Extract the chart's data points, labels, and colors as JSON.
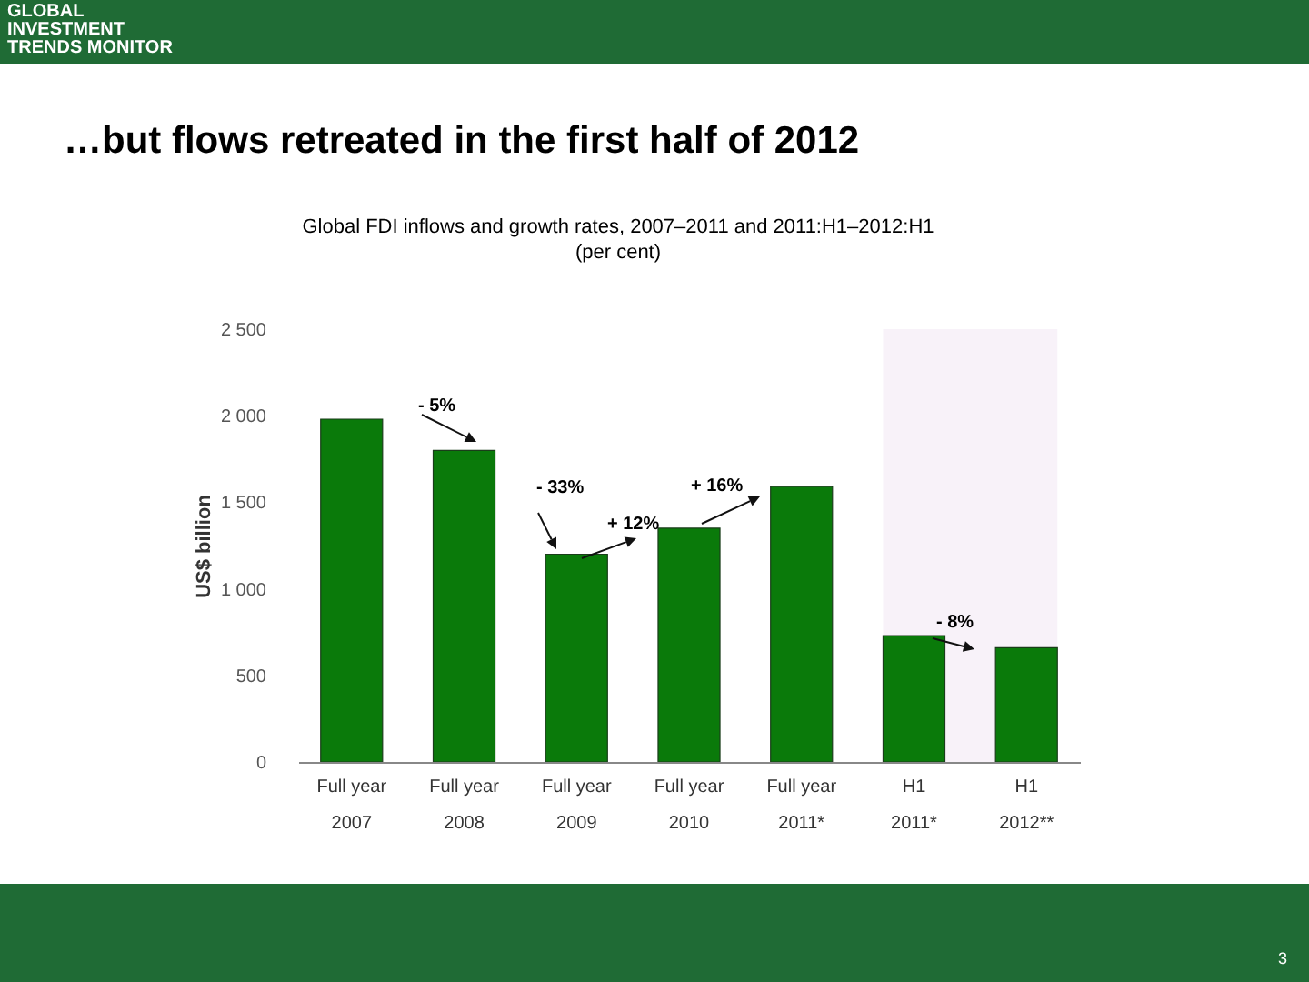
{
  "chart_data": {
    "type": "bar",
    "title": "…but flows retreated in the first half of 2012",
    "subtitle": "Global FDI inflows and growth rates, 2007–2011 and 2011:H1–2012:H1\n(per cent)",
    "ylabel": "US$ billion",
    "categories": [
      "Full year\n2007",
      "Full year\n2008",
      "Full year\n2009",
      "Full year\n2010",
      "Full year\n2011*",
      "H1\n2011*",
      "H1\n2012**"
    ],
    "values": [
      1980,
      1800,
      1200,
      1350,
      1590,
      730,
      660
    ],
    "color": "#0a7a0a",
    "ylim": [
      0,
      2500
    ],
    "yticks": [
      {
        "value": 0,
        "label": "0"
      },
      {
        "value": 500,
        "label": "500"
      },
      {
        "value": 1000,
        "label": "1 000"
      },
      {
        "value": 1500,
        "label": "1 500"
      },
      {
        "value": 2000,
        "label": "2 000"
      },
      {
        "value": 2500,
        "label": "2 500"
      }
    ],
    "grid": false,
    "bands": [
      {
        "axis": "x",
        "from": "H1\n2011*",
        "to": "H1\n2012**",
        "color": "#f8f2f9"
      }
    ],
    "annotations": [
      "GLOBAL\nINVESTMENT\nTRENDS MONITOR",
      "3",
      "- 5%",
      "- 33%",
      "+ 12%",
      "+ 16%",
      "- 8%"
    ]
  }
}
